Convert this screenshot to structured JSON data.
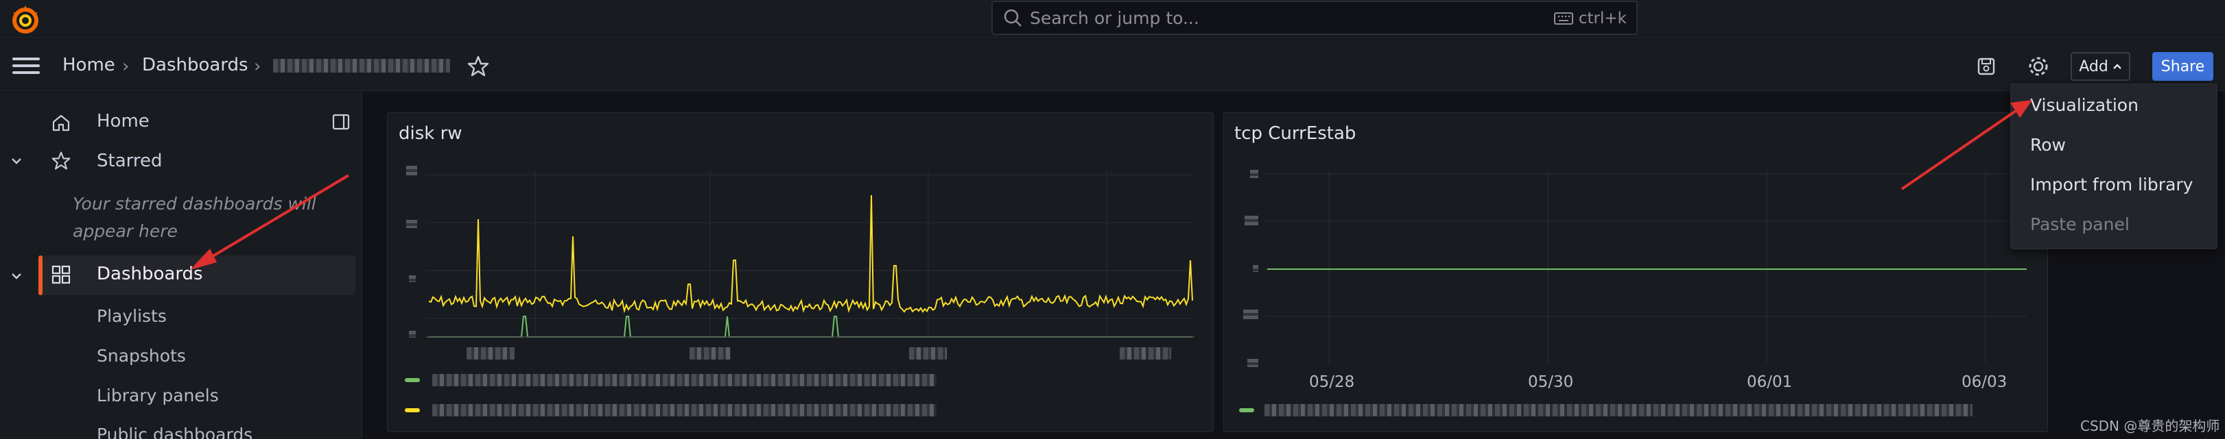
{
  "search": {
    "placeholder": "Search or jump to...",
    "shortcut": "ctrl+k"
  },
  "breadcrumb": {
    "home": "Home",
    "dashboards": "Dashboards"
  },
  "toolbar": {
    "add_label": "Add",
    "share_label": "Share"
  },
  "sidebar": {
    "home": "Home",
    "starred": "Starred",
    "starred_empty": "Your starred dashboards will appear here",
    "dashboards": "Dashboards",
    "children": [
      "Playlists",
      "Snapshots",
      "Library panels",
      "Public dashboards"
    ]
  },
  "panels": {
    "disk": {
      "title": "disk rw"
    },
    "tcp": {
      "title": "tcp CurrEstab",
      "x_ticks": [
        "05/28",
        "05/30",
        "06/01",
        "06/03"
      ]
    }
  },
  "add_menu": [
    "Visualization",
    "Row",
    "Import from library",
    "Paste panel"
  ],
  "watermark": "CSDN @尊贵的架构师",
  "colors": {
    "accent": "#f05a28",
    "primary": "#3d71d9",
    "series_yellow": "#fade2a",
    "series_green": "#73bf69",
    "arrow": "#e02f2f"
  },
  "icons": [
    "grafana-logo-icon",
    "search-icon",
    "keyboard-icon",
    "menu-icon",
    "star-icon",
    "save-icon",
    "gear-icon",
    "chevron-up-icon",
    "home-icon",
    "dock-icon",
    "chevron-down-icon",
    "apps-icon"
  ]
}
